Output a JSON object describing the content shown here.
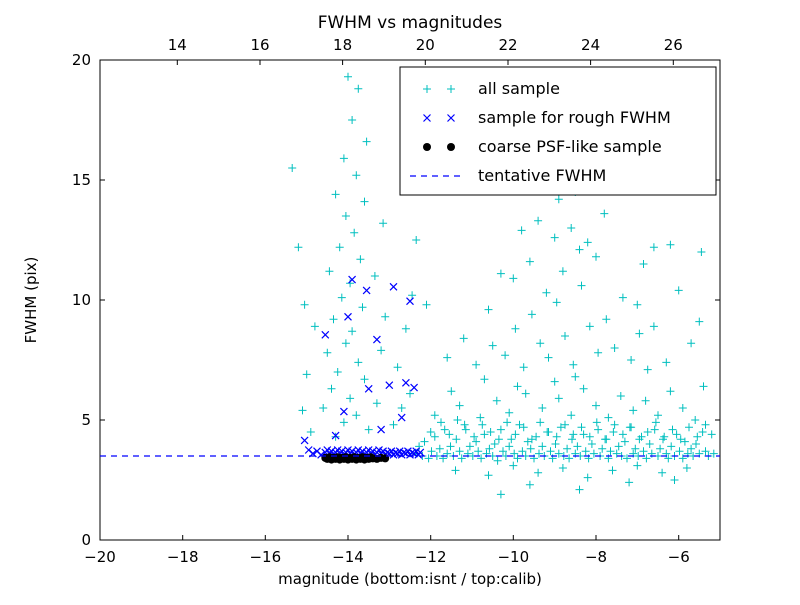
{
  "chart_data": {
    "type": "scatter",
    "title": "FWHM vs magnitudes",
    "xlabel": "magnitude (bottom:isnt / top:calib)",
    "ylabel": "FWHM (pix)",
    "xlim": [
      -20,
      -5
    ],
    "ylim": [
      0,
      20
    ],
    "x_ticks": [
      -20,
      -18,
      -16,
      -14,
      -12,
      -10,
      -8,
      -6
    ],
    "y_ticks": [
      0,
      5,
      10,
      15,
      20
    ],
    "top_axis": {
      "lim": [
        12.13,
        27.13
      ],
      "ticks": [
        14,
        16,
        18,
        20,
        22,
        24,
        26
      ]
    },
    "grid": false,
    "legend_position": "upper right",
    "point_format": "flat [x0,y0,x1,y1,...]",
    "colors": {
      "all_sample": "#00bfbf",
      "rough_fwhm": "#0000ff",
      "coarse_psf": "#000000",
      "tentative_line": "#0000ff",
      "axes": "#000000",
      "background": "#ffffff"
    },
    "tentative_fwhm_y": 3.5,
    "series": [
      {
        "name": "all sample",
        "kind": "scatter",
        "marker": "plus",
        "color_key": "all_sample",
        "points": [
          -12.35,
          3.6,
          -12.28,
          3.9,
          -12.2,
          3.5,
          -12.15,
          4.1,
          -12.05,
          3.4,
          -11.98,
          3.7,
          -11.9,
          4.3,
          -11.85,
          3.5,
          -11.78,
          3.8,
          -11.7,
          3.4,
          -11.66,
          4.6,
          -11.6,
          3.6,
          -11.52,
          3.9,
          -11.45,
          3.5,
          -11.38,
          4.2,
          -11.3,
          3.7,
          -11.25,
          3.4,
          -11.18,
          4.8,
          -11.1,
          3.6,
          -11.05,
          3.9,
          -10.98,
          3.5,
          -10.9,
          4.1,
          -10.85,
          3.7,
          -10.78,
          3.4,
          -10.7,
          4.4,
          -10.65,
          3.6,
          -10.58,
          3.8,
          -10.5,
          3.5,
          -10.45,
          4.0,
          -10.38,
          3.3,
          -10.3,
          4.6,
          -10.25,
          3.7,
          -10.18,
          3.5,
          -10.1,
          3.9,
          -10.05,
          4.2,
          -9.98,
          3.6,
          -9.9,
          3.4,
          -9.85,
          4.8,
          -9.78,
          3.7,
          -9.7,
          3.5,
          -9.65,
          4.1,
          -9.58,
          3.8,
          -9.5,
          3.4,
          -9.45,
          4.3,
          -9.38,
          3.6,
          -9.3,
          3.9,
          -9.25,
          3.5,
          -9.18,
          4.5,
          -9.1,
          3.7,
          -9.05,
          3.4,
          -8.98,
          4.0,
          -8.9,
          3.6,
          -8.85,
          4.7,
          -8.78,
          3.5,
          -8.7,
          3.8,
          -8.65,
          3.4,
          -8.58,
          4.2,
          -8.5,
          3.6,
          -8.45,
          3.9,
          -8.38,
          3.5,
          -8.3,
          4.4,
          -8.25,
          3.7,
          -8.18,
          3.4,
          -8.1,
          4.0,
          -8.05,
          3.6,
          -7.98,
          4.9,
          -7.9,
          3.5,
          -7.85,
          3.8,
          -7.78,
          4.2,
          -7.7,
          3.4,
          -7.65,
          3.7,
          -7.58,
          4.5,
          -7.5,
          3.6,
          -7.45,
          3.9,
          -7.38,
          3.5,
          -7.3,
          4.1,
          -7.25,
          3.4,
          -7.18,
          4.7,
          -7.1,
          3.6,
          -7.05,
          3.8,
          -6.98,
          3.5,
          -6.9,
          4.3,
          -6.85,
          3.7,
          -6.78,
          3.4,
          -6.7,
          4.0,
          -6.65,
          3.6,
          -6.58,
          4.6,
          -6.5,
          3.5,
          -6.45,
          3.8,
          -6.38,
          4.2,
          -6.3,
          3.6,
          -6.25,
          3.4,
          -6.18,
          3.9,
          -6.1,
          3.5,
          -6.05,
          4.4,
          -5.98,
          3.7,
          -5.9,
          3.4,
          -5.85,
          4.1,
          -5.78,
          3.6,
          -5.7,
          3.8,
          -5.65,
          3.5,
          -5.58,
          4.0,
          -5.5,
          3.6,
          -5.42,
          4.5,
          -5.35,
          3.7,
          -5.28,
          3.5,
          -5.15,
          3.6,
          -5.2,
          4.4,
          -12.0,
          4.5,
          -11.75,
          4.9,
          -11.55,
          4.4,
          -11.35,
          5.0,
          -11.15,
          4.6,
          -10.95,
          4.3,
          -10.75,
          4.8,
          -10.55,
          4.5,
          -10.35,
          4.2,
          -10.15,
          4.9,
          -9.95,
          4.4,
          -9.75,
          4.7,
          -9.55,
          4.2,
          -9.35,
          4.9,
          -9.15,
          4.5,
          -8.95,
          4.3,
          -8.75,
          4.8,
          -8.55,
          4.4,
          -8.35,
          4.7,
          -8.15,
          4.3,
          -7.95,
          4.6,
          -7.75,
          4.2,
          -7.55,
          4.8,
          -7.35,
          4.4,
          -7.15,
          4.7,
          -6.95,
          4.2,
          -6.75,
          4.5,
          -6.55,
          4.9,
          -6.35,
          4.3,
          -6.15,
          4.6,
          -5.95,
          4.2,
          -5.75,
          4.7,
          -5.55,
          4.3,
          -5.35,
          4.8,
          -11.4,
          2.9,
          -10.6,
          2.7,
          -10.0,
          3.1,
          -9.4,
          2.8,
          -8.8,
          3.0,
          -8.2,
          2.6,
          -7.6,
          2.9,
          -7.0,
          3.1,
          -6.4,
          2.8,
          -5.8,
          3.0,
          -9.6,
          2.3,
          -8.4,
          2.1,
          -7.2,
          2.4,
          -10.3,
          1.9,
          -6.1,
          2.5,
          -11.9,
          5.2,
          -11.3,
          5.6,
          -10.8,
          5.1,
          -10.4,
          5.8,
          -10.1,
          5.3,
          -9.7,
          6.1,
          -9.3,
          5.5,
          -8.9,
          5.9,
          -8.6,
          5.2,
          -8.3,
          6.3,
          -8.0,
          5.6,
          -7.7,
          5.1,
          -7.4,
          6.0,
          -7.1,
          5.4,
          -6.8,
          5.8,
          -6.5,
          5.2,
          -6.2,
          6.2,
          -5.9,
          5.5,
          -5.6,
          5.0,
          -5.4,
          6.4,
          -9.0,
          6.6,
          -8.5,
          6.8,
          -9.9,
          6.4,
          -10.7,
          6.7,
          -11.5,
          6.2,
          -10.9,
          7.3,
          -10.5,
          8.1,
          -10.2,
          7.7,
          -9.95,
          8.8,
          -9.75,
          7.2,
          -9.55,
          9.4,
          -9.35,
          8.2,
          -9.15,
          7.6,
          -8.95,
          9.9,
          -8.75,
          8.5,
          -8.55,
          7.3,
          -8.35,
          10.6,
          -8.15,
          8.9,
          -7.95,
          7.8,
          -7.75,
          9.2,
          -7.55,
          8.0,
          -7.35,
          10.1,
          -7.15,
          7.5,
          -6.95,
          8.6,
          -6.75,
          7.1,
          -10.0,
          10.9,
          -9.6,
          11.6,
          -9.2,
          10.3,
          -8.8,
          11.2,
          -8.4,
          12.1,
          -8.0,
          11.8,
          -9.0,
          12.6,
          -9.4,
          13.3,
          -8.6,
          13.0,
          -8.2,
          12.4,
          -9.8,
          12.9,
          -10.3,
          11.1,
          -7.8,
          13.6,
          -8.9,
          14.2,
          -9.3,
          14.8,
          -8.5,
          14.5,
          -10.6,
          9.6,
          -11.2,
          8.4,
          -11.6,
          7.6,
          -7.0,
          9.8,
          -6.6,
          8.9,
          -6.3,
          7.4,
          -5.7,
          8.2,
          -5.5,
          9.1,
          -6.0,
          10.4,
          -12.35,
          12.5,
          -12.1,
          9.8,
          -8.9,
          15.3,
          -8.35,
          15.7,
          -7.6,
          14.6,
          -6.2,
          12.3,
          -6.6,
          12.2,
          -5.45,
          12.0,
          -6.85,
          11.5,
          -14.0,
          19.3,
          -13.75,
          18.8,
          -13.9,
          17.5,
          -13.55,
          16.6,
          -14.1,
          15.9,
          -13.8,
          15.2,
          -14.3,
          14.4,
          -13.6,
          14.1,
          -14.05,
          13.5,
          -13.85,
          12.8,
          -14.2,
          12.2,
          -13.7,
          11.7,
          -14.45,
          11.2,
          -13.95,
          10.7,
          -14.15,
          10.1,
          -13.65,
          9.7,
          -14.35,
          9.2,
          -13.9,
          8.7,
          -14.05,
          8.2,
          -14.5,
          7.8,
          -13.75,
          7.4,
          -14.25,
          7.0,
          -13.6,
          6.7,
          -14.4,
          6.3,
          -13.95,
          5.9,
          -14.6,
          5.5,
          -13.8,
          5.2,
          -14.1,
          4.9,
          -13.5,
          4.6,
          -14.3,
          4.3,
          -15.0,
          6.9,
          -14.8,
          8.9,
          -15.1,
          5.4,
          -14.9,
          4.5,
          -15.35,
          15.5,
          -15.2,
          12.2,
          -15.05,
          9.8,
          -13.3,
          5.7,
          -13.2,
          7.9,
          -13.1,
          9.3,
          -13.35,
          11.0,
          -13.15,
          13.2,
          -12.9,
          4.8,
          -12.7,
          5.5,
          -12.5,
          6.1,
          -12.8,
          7.2,
          -12.6,
          8.8,
          -12.45,
          10.2
        ]
      },
      {
        "name": "sample for rough FWHM",
        "kind": "scatter",
        "marker": "x",
        "color_key": "rough_fwhm",
        "points": [
          -15.05,
          4.15,
          -14.95,
          3.75,
          -14.85,
          3.6,
          -14.75,
          3.7,
          -14.65,
          3.55,
          -14.55,
          3.65,
          -14.5,
          3.75,
          -14.45,
          3.6,
          -14.4,
          3.7,
          -14.35,
          3.55,
          -14.3,
          3.65,
          -14.25,
          3.75,
          -14.2,
          3.6,
          -14.15,
          3.7,
          -14.1,
          3.55,
          -14.05,
          3.65,
          -14.0,
          3.75,
          -13.95,
          3.6,
          -13.9,
          3.7,
          -13.85,
          3.55,
          -13.8,
          3.65,
          -13.75,
          3.75,
          -13.7,
          3.6,
          -13.65,
          3.7,
          -13.6,
          3.55,
          -13.55,
          3.65,
          -13.5,
          3.75,
          -13.45,
          3.6,
          -13.4,
          3.7,
          -13.35,
          3.55,
          -13.3,
          3.65,
          -13.25,
          3.75,
          -13.2,
          3.6,
          -13.15,
          3.7,
          -13.1,
          3.55,
          -13.05,
          3.65,
          -13.0,
          3.6,
          -12.95,
          3.7,
          -12.9,
          3.55,
          -12.85,
          3.65,
          -12.8,
          3.6,
          -12.75,
          3.7,
          -12.7,
          3.55,
          -12.65,
          3.65,
          -12.6,
          3.6,
          -12.55,
          3.7,
          -12.5,
          3.55,
          -12.45,
          3.65,
          -12.4,
          3.6,
          -12.35,
          3.7,
          -12.3,
          3.55,
          -12.25,
          3.65,
          -13.9,
          10.85,
          -13.55,
          10.4,
          -12.9,
          10.55,
          -12.5,
          9.95,
          -14.0,
          9.3,
          -13.3,
          8.35,
          -14.55,
          8.55,
          -12.6,
          6.55,
          -13.0,
          6.45,
          -13.5,
          6.3,
          -12.4,
          6.35,
          -14.1,
          5.35,
          -12.7,
          5.1,
          -13.2,
          4.6,
          -14.3,
          4.35
        ]
      },
      {
        "name": "coarse PSF-like sample",
        "kind": "scatter",
        "marker": "circle",
        "color_key": "coarse_psf",
        "points": [
          -14.55,
          3.42,
          -14.5,
          3.38,
          -14.45,
          3.45,
          -14.4,
          3.35,
          -14.35,
          3.42,
          -14.3,
          3.38,
          -14.25,
          3.45,
          -14.2,
          3.35,
          -14.15,
          3.42,
          -14.1,
          3.38,
          -14.05,
          3.45,
          -14.0,
          3.35,
          -13.95,
          3.42,
          -13.9,
          3.38,
          -13.85,
          3.45,
          -13.8,
          3.35,
          -13.75,
          3.42,
          -13.7,
          3.38,
          -13.65,
          3.45,
          -13.6,
          3.35,
          -13.55,
          3.42,
          -13.5,
          3.38,
          -13.45,
          3.45,
          -13.4,
          3.4,
          -13.3,
          3.38,
          -13.2,
          3.42,
          -13.1,
          3.4
        ]
      },
      {
        "name": "tentative FWHM",
        "kind": "hline",
        "y": 3.5,
        "linestyle": "dashed",
        "color_key": "tentative_line"
      }
    ]
  }
}
